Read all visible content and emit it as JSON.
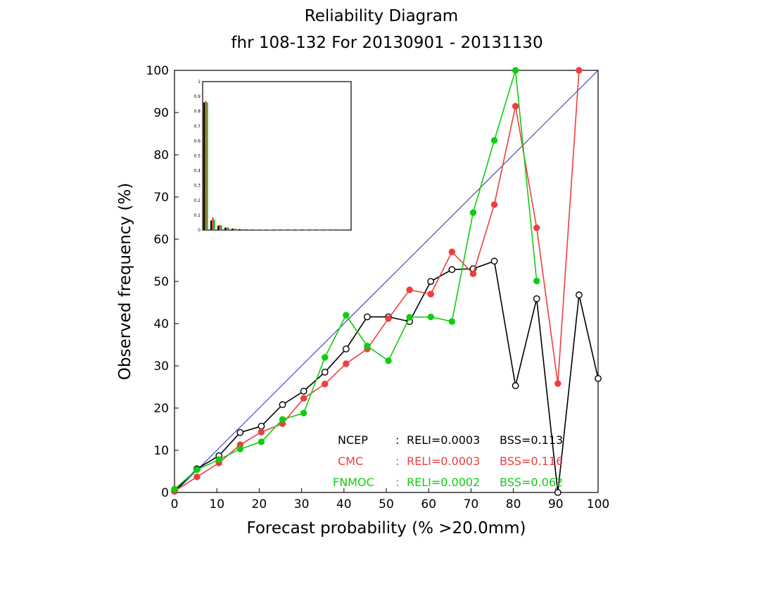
{
  "chart_data": {
    "type": "line",
    "title": "Reliability Diagram",
    "subtitle": "fhr 108-132 For 20130901 - 20131130",
    "xlabel": "Forecast probability (% >20.0mm)",
    "ylabel": "Observed frequency (%)",
    "xlim": [
      0,
      100
    ],
    "ylim": [
      0,
      100
    ],
    "x_ticks": [
      "0",
      "10",
      "20",
      "30",
      "40",
      "50",
      "60",
      "70",
      "80",
      "90",
      "100"
    ],
    "y_ticks": [
      "0",
      "10",
      "20",
      "30",
      "40",
      "50",
      "60",
      "70",
      "80",
      "90",
      "100"
    ],
    "diagonal": {
      "from": [
        0,
        0
      ],
      "to": [
        100,
        100
      ],
      "color": "#1f2fb0"
    },
    "series": [
      {
        "name": "NCEP",
        "color": "#000000",
        "marker": "open-circle",
        "reli": "RELI=0.0003",
        "bss": "BSS=0.113",
        "x": [
          0,
          5.3,
          10.5,
          15.5,
          20.5,
          25.5,
          30.5,
          35.5,
          40.5,
          45.5,
          50.5,
          55.5,
          60.5,
          65.5,
          70.5,
          75.5,
          80.5,
          85.5,
          90.5,
          95.5,
          100
        ],
        "y": [
          0.3,
          5.6,
          8.7,
          14.2,
          15.7,
          20.8,
          24,
          28.5,
          34,
          41.6,
          41.6,
          40.5,
          50,
          52.8,
          53,
          54.8,
          25.3,
          45.9,
          0,
          46.8,
          27
        ]
      },
      {
        "name": "CMC",
        "color": "#ee3e3e",
        "marker": "filled-circle",
        "reli": "RELI=0.0003",
        "bss": "BSS=0.116",
        "x": [
          0,
          5.3,
          10.5,
          15.5,
          20.5,
          25.5,
          30.5,
          35.5,
          40.5,
          45.5,
          50.5,
          55.5,
          60.5,
          65.5,
          70.5,
          75.5,
          80.5,
          85.5,
          90.5,
          95.5
        ],
        "y": [
          0.3,
          3.7,
          7,
          11.3,
          14.3,
          16.3,
          22.3,
          25.7,
          30.5,
          34,
          41.2,
          48,
          47,
          57,
          51.8,
          68.2,
          91.5,
          62.7,
          25.8,
          100
        ]
      },
      {
        "name": "FNMOC",
        "color": "#11cc11",
        "marker": "filled-circle",
        "reli": "RELI=0.0002",
        "bss": "BSS=0.062",
        "x": [
          0,
          5.3,
          10.5,
          15.5,
          20.5,
          25.5,
          30.5,
          35.5,
          40.5,
          45.5,
          50.5,
          55.5,
          60.5,
          65.5,
          70.5,
          75.5,
          80.5,
          85.5
        ],
        "y": [
          0.8,
          5.4,
          7.8,
          10.3,
          12,
          17.3,
          18.8,
          32,
          42,
          34.7,
          31.2,
          41.5,
          41.6,
          40.5,
          66.3,
          83.4,
          100,
          50.1
        ]
      }
    ],
    "inset": {
      "type": "bar",
      "ylim": [
        0,
        1
      ],
      "y_ticks": [
        "0",
        "0.1",
        "0.2",
        "0.3",
        "0.4",
        "0.5",
        "0.6",
        "0.7",
        "0.8",
        "0.9",
        "1"
      ],
      "bins": [
        0,
        5,
        10,
        15,
        20,
        25,
        30,
        35,
        40,
        45,
        50,
        55,
        60,
        65,
        70,
        75,
        80,
        85,
        90,
        95,
        100
      ],
      "series": [
        {
          "name": "NCEP",
          "color": "#000000",
          "values": [
            0.86,
            0.065,
            0.03,
            0.017,
            0.01,
            0.006,
            0.004,
            0.003,
            0.002,
            0.002,
            0.001,
            0.001,
            0.001,
            0.001,
            0.001,
            0.0005,
            0.0005,
            0.0003,
            0.0003,
            0.0002,
            0.0002
          ]
        },
        {
          "name": "CMC",
          "color": "#ee3e3e",
          "values": [
            0.87,
            0.085,
            0.033,
            0.017,
            0.01,
            0.006,
            0.004,
            0.003,
            0.002,
            0.002,
            0.001,
            0.001,
            0.001,
            0.001,
            0.001,
            0.0005,
            0.0005,
            0.0003,
            0.0003,
            0.0002,
            0
          ]
        },
        {
          "name": "FNMOC",
          "color": "#11cc11",
          "values": [
            0.86,
            0.07,
            0.03,
            0.017,
            0.01,
            0.006,
            0.004,
            0.003,
            0.002,
            0.002,
            0.001,
            0.001,
            0.001,
            0.001,
            0.001,
            0.0005,
            0.0005,
            0.0003,
            0,
            0,
            0
          ]
        }
      ]
    }
  }
}
